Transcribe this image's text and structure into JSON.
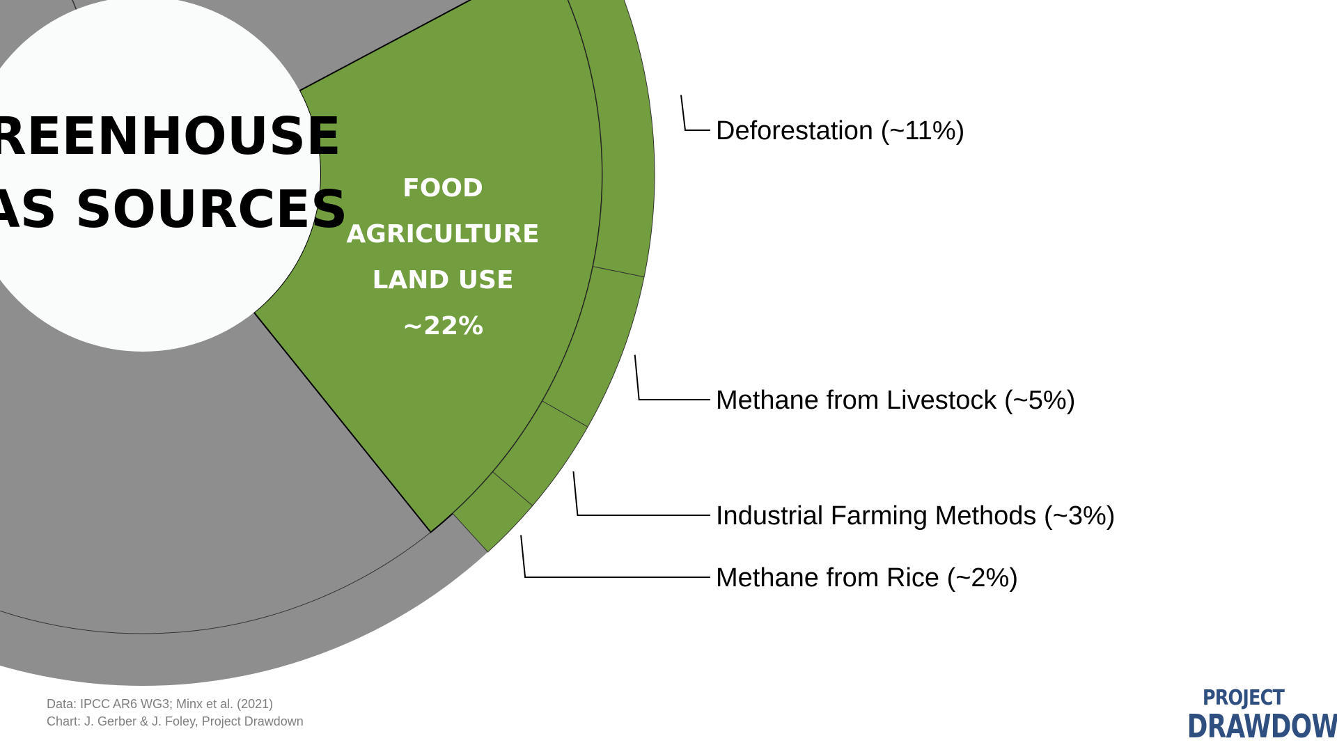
{
  "chart_data": {
    "type": "pie",
    "title": "GREENHOUSE GAS SOURCES",
    "title_lines": [
      "GREENHOUSE",
      "GAS SOURCES"
    ],
    "highlight": {
      "name": "FOOD AGRICULTURE LAND USE",
      "label_lines": [
        "FOOD",
        "AGRICULTURE",
        "LAND USE",
        "~22%"
      ],
      "value": 22,
      "color": "#739e3f"
    },
    "other_color": "#8e8e8e",
    "sub_segments": [
      {
        "label": "Deforestation (~11%)",
        "value": 11
      },
      {
        "label": "Methane from Livestock (~5%)",
        "value": 5
      },
      {
        "label": "Industrial Farming Methods (~3%)",
        "value": 3
      },
      {
        "label": "Methane from Rice (~2%)",
        "value": 2
      }
    ]
  },
  "source": {
    "line1": "Data: IPCC AR6 WG3; Minx et al. (2021)",
    "line2": "Chart: J. Gerber & J. Foley, Project Drawdown"
  },
  "logo": {
    "line1": "PROJECT",
    "line2": "DRAWDOWN"
  }
}
